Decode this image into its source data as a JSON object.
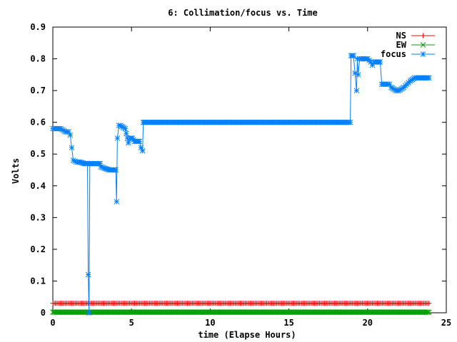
{
  "chart_data": {
    "type": "line",
    "title": "6: Collimation/focus vs. Time",
    "xlabel": "time (Elapse Hours)",
    "ylabel": "Volts",
    "xlim": [
      0,
      25
    ],
    "ylim": [
      0,
      0.9
    ],
    "xticks": [
      0,
      5,
      10,
      15,
      20,
      25
    ],
    "xtick_labels": [
      "0",
      "5",
      "10",
      "15",
      "20",
      "25"
    ],
    "yticks": [
      0,
      0.1,
      0.2,
      0.3,
      0.4,
      0.5,
      0.6,
      0.7,
      0.8,
      0.9
    ],
    "ytick_labels": [
      "0",
      "0.1",
      "0.2",
      "0.3",
      "0.4",
      "0.5",
      "0.6",
      "0.7",
      "0.8",
      "0.9"
    ],
    "grid": false,
    "legend_position": "top-right",
    "series": [
      {
        "name": "NS",
        "color": "#ff0000",
        "marker": "plus",
        "x": [
          0,
          23.9
        ],
        "y": [
          0.03,
          0.03
        ]
      },
      {
        "name": "EW",
        "color": "#00a000",
        "marker": "cross",
        "x": [
          0,
          23.9
        ],
        "y": [
          0.002,
          0.002
        ]
      },
      {
        "name": "focus",
        "color": "#0080ff",
        "marker": "star",
        "x": [
          0,
          0.5,
          0.8,
          1.0,
          1.1,
          1.3,
          1.5,
          1.7,
          2.0,
          2.2,
          2.25,
          2.3,
          2.35,
          2.4,
          2.6,
          3.0,
          3.05,
          3.3,
          3.6,
          3.9,
          4.0,
          4.05,
          4.1,
          4.2,
          4.3,
          4.6,
          4.8,
          4.9,
          5.05,
          5.2,
          5.5,
          5.6,
          5.7,
          5.75,
          5.8,
          6.0,
          8.0,
          10.0,
          12.0,
          14.0,
          16.0,
          18.0,
          18.9,
          18.95,
          19.1,
          19.3,
          19.35,
          19.4,
          19.5,
          19.7,
          20.0,
          20.2,
          20.3,
          20.4,
          20.8,
          20.9,
          21.2,
          21.4,
          21.5,
          21.8,
          22.0,
          22.3,
          22.5,
          22.7,
          23.0,
          23.2,
          23.5,
          23.9
        ],
        "y": [
          0.58,
          0.58,
          0.57,
          0.57,
          0.56,
          0.48,
          0.475,
          0.475,
          0.47,
          0.47,
          0.12,
          0.0,
          0.47,
          0.47,
          0.47,
          0.47,
          0.46,
          0.455,
          0.45,
          0.45,
          0.45,
          0.35,
          0.55,
          0.59,
          0.59,
          0.58,
          0.535,
          0.55,
          0.55,
          0.54,
          0.54,
          0.52,
          0.51,
          0.6,
          0.6,
          0.6,
          0.6,
          0.6,
          0.6,
          0.6,
          0.6,
          0.6,
          0.6,
          0.81,
          0.81,
          0.7,
          0.8,
          0.75,
          0.8,
          0.8,
          0.8,
          0.79,
          0.78,
          0.79,
          0.79,
          0.72,
          0.72,
          0.72,
          0.71,
          0.7,
          0.7,
          0.71,
          0.72,
          0.73,
          0.74,
          0.74,
          0.74,
          0.74
        ]
      }
    ]
  }
}
